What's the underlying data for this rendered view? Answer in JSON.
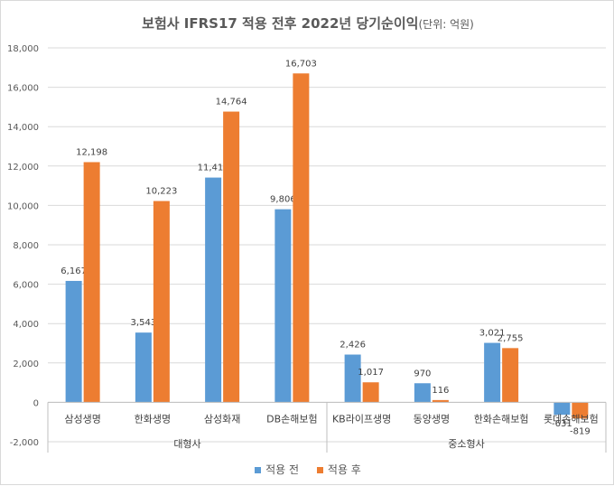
{
  "chart_data": {
    "type": "bar",
    "title": "보험사 IFRS17 적용 전후 2022년 당기순이익",
    "unit_note": "(단위: 억원)",
    "categories": [
      "삼성생명",
      "한화생명",
      "삼성화재",
      "DB손해보험",
      "KB라이프생명",
      "동양생명",
      "한화손해보험",
      "롯데손해보험"
    ],
    "groups": [
      {
        "label": "대형사",
        "count": 4
      },
      {
        "label": "중소형사",
        "count": 4
      }
    ],
    "series": [
      {
        "name": "적용 전",
        "color": "#5b9bd5",
        "values": [
          6167,
          3543,
          11414,
          9806,
          2426,
          970,
          3021,
          -631
        ]
      },
      {
        "name": "적용 후",
        "color": "#ed7d31",
        "values": [
          12198,
          10223,
          14764,
          16703,
          1017,
          116,
          2755,
          -819
        ]
      }
    ],
    "data_labels": [
      [
        "6,167",
        "3,543",
        "11,414",
        "9,806",
        "2,426",
        "970",
        "3,021",
        "-631"
      ],
      [
        "12,198",
        "10,223",
        "14,764",
        "16,703",
        "1,017",
        "116",
        "2,755",
        "-819"
      ]
    ],
    "yticks": [
      "-2,000",
      "0",
      "2,000",
      "4,000",
      "6,000",
      "8,000",
      "10,000",
      "12,000",
      "14,000",
      "16,000",
      "18,000"
    ],
    "ylim": [
      -2000,
      18000
    ],
    "grid": true,
    "legend_position": "bottom"
  }
}
